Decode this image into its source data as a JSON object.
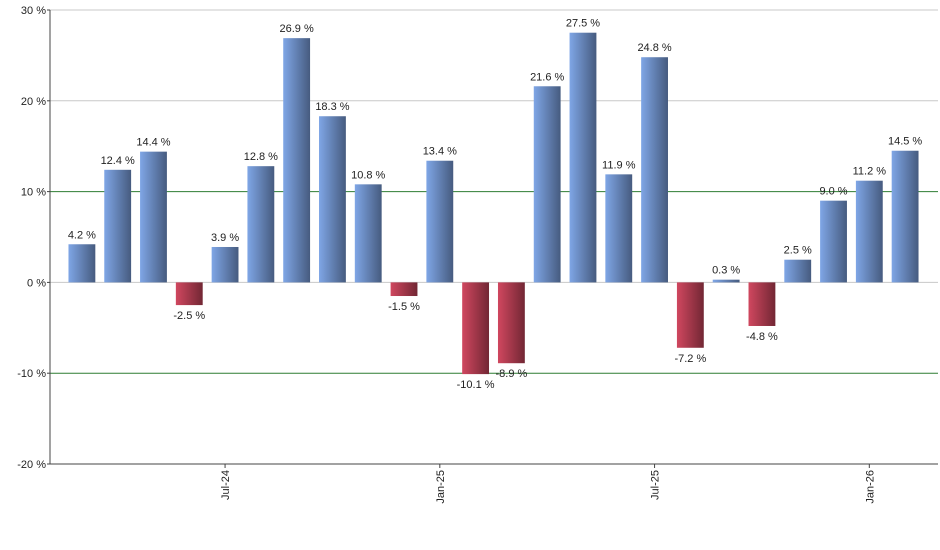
{
  "chart_data": {
    "type": "bar",
    "categories": [
      null,
      null,
      null,
      null,
      "Jul-24",
      null,
      null,
      null,
      null,
      null,
      "Jan-25",
      null,
      null,
      null,
      null,
      null,
      "Jul-25",
      null,
      null,
      null,
      null,
      null,
      "Jan-26",
      null
    ],
    "series": [
      {
        "color": "#7fa6e6",
        "negative_color": "#d0475f",
        "values": [
          4.2,
          12.4,
          14.4,
          -2.5,
          3.9,
          12.8,
          26.9,
          18.3,
          10.8,
          -1.5,
          13.4,
          -10.1,
          -8.9,
          21.6,
          27.5,
          11.9,
          24.8,
          -7.2,
          0.3,
          -4.8,
          2.5,
          9.0,
          11.2,
          14.5
        ],
        "value_labels": [
          "4.2 %",
          "12.4 %",
          "14.4 %",
          "-2.5 %",
          "3.9 %",
          "12.8 %",
          "26.9 %",
          "18.3 %",
          "10.8 %",
          "-1.5 %",
          "13.4 %",
          "-10.1 %",
          "-8.9 %",
          "21.6 %",
          "27.5 %",
          "11.9 %",
          "24.8 %",
          "-7.2 %",
          "0.3 %",
          "-4.8 %",
          "2.5 %",
          "9.0 %",
          "11.2 %",
          "14.5 %"
        ]
      }
    ],
    "ylim": [
      -20,
      30
    ],
    "yticks": [
      {
        "value": -20,
        "label": "-20 %"
      },
      {
        "value": -10,
        "label": "-10 %"
      },
      {
        "value": 0,
        "label": "0 %"
      },
      {
        "value": 10,
        "label": "10 %"
      },
      {
        "value": 20,
        "label": "20 %"
      },
      {
        "value": 30,
        "label": "30 %"
      }
    ],
    "grid": true,
    "grid_colors": [
      "#c8c8c8",
      "#2e7d32",
      "#c8c8c8",
      "#2e7d32",
      "#c8c8c8",
      "#c8c8c8"
    ]
  }
}
